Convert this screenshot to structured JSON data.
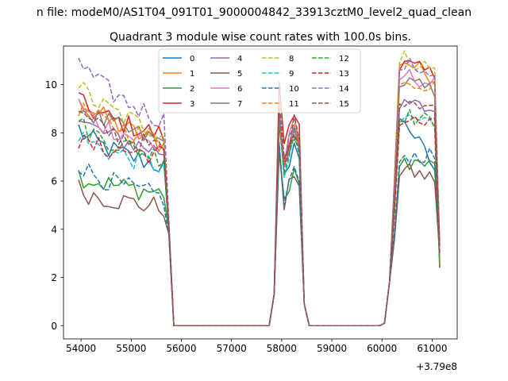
{
  "chart_data": {
    "type": "line",
    "suptitle": "n file: modeM0/AS1T04_091T01_9000004842_33913cztM0_level2_quad_clean",
    "title": "Quadrant 3 module wise count rates with 100.0s bins.",
    "xlabel": "",
    "ylabel": "",
    "x_offset_label": "+3.79e8",
    "xlim": [
      53650,
      61500
    ],
    "ylim": [
      -0.55,
      11.6
    ],
    "xticks": [
      54000,
      55000,
      56000,
      57000,
      58000,
      59000,
      60000,
      61000
    ],
    "yticks": [
      0,
      2,
      4,
      6,
      8,
      10
    ],
    "legend_loc": "upper center",
    "legend_ncol": 4,
    "series": [
      {
        "name": "0",
        "color": "#1f77b4",
        "dash": "solid",
        "high": [
          8.2,
          8.8,
          7.8,
          7.4,
          7.2,
          4.0,
          7.3,
          8.9,
          6.5
        ],
        "low": 6.6
      },
      {
        "name": "1",
        "color": "#ff7f0e",
        "dash": "solid",
        "high": [
          9.7,
          10.1,
          9.1,
          8.6,
          8.5,
          4.0,
          7.7,
          11.1,
          10.3
        ],
        "low": 7.5
      },
      {
        "name": "2",
        "color": "#2ca02c",
        "dash": "solid",
        "high": [
          6.3,
          6.4,
          5.9,
          5.8,
          5.7,
          4.0,
          6.2,
          6.9,
          6.6
        ],
        "low": 5.5
      },
      {
        "name": "3",
        "color": "#d62728",
        "dash": "solid",
        "high": [
          9.4,
          10.3,
          9.0,
          8.5,
          8.0,
          4.2,
          8.8,
          10.9,
          10.4
        ],
        "low": 7.9
      },
      {
        "name": "4",
        "color": "#9467bd",
        "dash": "solid",
        "high": [
          8.7,
          8.9,
          8.4,
          7.9,
          7.6,
          4.2,
          7.9,
          9.3,
          8.9
        ],
        "low": 7.2
      },
      {
        "name": "5",
        "color": "#8c564b",
        "dash": "solid",
        "high": [
          5.7,
          6.2,
          5.7,
          5.3,
          5.0,
          3.8,
          6.1,
          6.5,
          6.1
        ],
        "low": 4.9
      },
      {
        "name": "6",
        "color": "#e377c2",
        "dash": "solid",
        "high": [
          9.2,
          9.1,
          8.5,
          8.1,
          7.8,
          4.1,
          8.0,
          10.5,
          10.0
        ],
        "low": 7.4
      },
      {
        "name": "7",
        "color": "#7f7f7f",
        "dash": "solid",
        "high": [
          9.3,
          9.6,
          8.7,
          8.3,
          8.1,
          4.0,
          7.8,
          10.2,
          9.7
        ],
        "low": 7.6
      },
      {
        "name": "8",
        "color": "#bcbd22",
        "dash": "dashed",
        "high": [
          10.1,
          10.0,
          9.2,
          8.8,
          8.6,
          4.3,
          8.2,
          11.2,
          10.6
        ],
        "low": 8.0
      },
      {
        "name": "9",
        "color": "#17becf",
        "dash": "dashed",
        "high": [
          8.0,
          7.9,
          7.4,
          7.1,
          6.8,
          3.9,
          7.4,
          8.7,
          8.4
        ],
        "low": 6.6
      },
      {
        "name": "10",
        "color": "#1f77b4",
        "dash": "dashed",
        "high": [
          6.8,
          6.6,
          6.3,
          6.0,
          5.6,
          3.8,
          6.3,
          7.1,
          7.0
        ],
        "low": 5.3
      },
      {
        "name": "11",
        "color": "#ff7f0e",
        "dash": "dashed",
        "high": [
          9.1,
          9.6,
          8.7,
          8.3,
          8.0,
          4.1,
          7.9,
          10.3,
          9.9
        ],
        "low": 7.7
      },
      {
        "name": "12",
        "color": "#2ca02c",
        "dash": "dashed",
        "high": [
          8.5,
          8.7,
          8.0,
          7.6,
          7.3,
          4.0,
          7.6,
          8.8,
          8.4
        ],
        "low": 7.0
      },
      {
        "name": "13",
        "color": "#d62728",
        "dash": "dashed",
        "high": [
          7.6,
          8.3,
          7.8,
          7.5,
          7.2,
          4.0,
          7.9,
          8.6,
          8.3
        ],
        "low": 7.1
      },
      {
        "name": "14",
        "color": "#9467bd",
        "dash": "dashed",
        "high": [
          11.2,
          10.1,
          9.7,
          9.4,
          8.8,
          4.4,
          8.1,
          10.9,
          10.5
        ],
        "low": 8.5
      },
      {
        "name": "15",
        "color": "#8c564b",
        "dash": "dashed",
        "high": [
          8.9,
          8.5,
          8.2,
          7.9,
          7.6,
          4.2,
          8.1,
          9.5,
          9.1
        ],
        "low": 7.3
      }
    ],
    "segment_times": [
      [
        53950,
        55650,
        55750,
        55850
      ],
      [
        57850,
        57950,
        58050,
        58350,
        58450,
        58550
      ],
      [
        60050,
        60150,
        60250,
        61050,
        61150
      ]
    ]
  }
}
